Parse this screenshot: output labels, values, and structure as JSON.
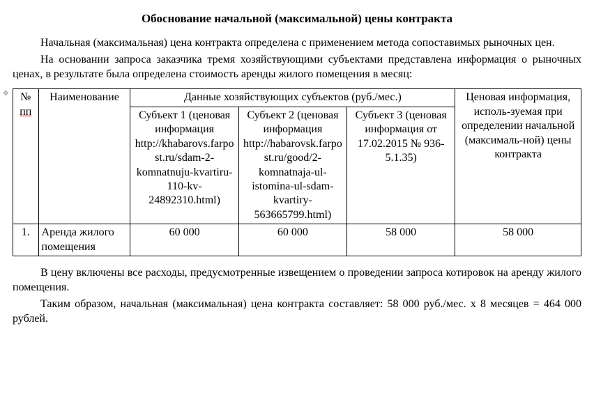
{
  "title": "Обоснование начальной (максимальной) цены контракта",
  "para1": "Начальная (максимальная) цена контракта определена с применением метода сопоставимых рыночных цен.",
  "para2": "На основании запроса заказчика тремя хозяйствующими субъектами представлена информация о рыночных ценах, в результате была определена стоимость аренды жилого помещения в месяц:",
  "table": {
    "head": {
      "num_label": "№",
      "num_sub": "пп",
      "name": "Наименование",
      "subjects_header": "Данные хозяйствующих субъектов (руб./мес.)",
      "price_info": "Ценовая информация, исполь-зуемая при определении начальной (максималь-ной) цены контракта",
      "sub1": "Субъект 1 (ценовая информация http://khabarovs.farpost.ru/sdam-2-komnatnuju-kvartiru-110-kv-24892310.html)",
      "sub2": "Субъект 2 (ценовая информация http://habarovsk.farpost.ru/good/2-komnatnaja-ul-istomina-ul-sdam-kvartiry-563665799.html)",
      "sub3": "Субъект 3 (ценовая информация от 17.02.2015 № 936-5.1.35)"
    },
    "row1": {
      "num": "1.",
      "name": "Аренда жилого помещения",
      "v1": "60 000",
      "v2": "60 000",
      "v3": "58 000",
      "price": "58 000"
    }
  },
  "para3": "В цену включены все расходы, предусмотренные извещением о проведении запроса котировок на аренду жилого помещения.",
  "para4": "Таким образом, начальная (максимальная) цена контракта составляет: 58 000 руб./мес. х 8 месяцев = 464 000 рублей."
}
